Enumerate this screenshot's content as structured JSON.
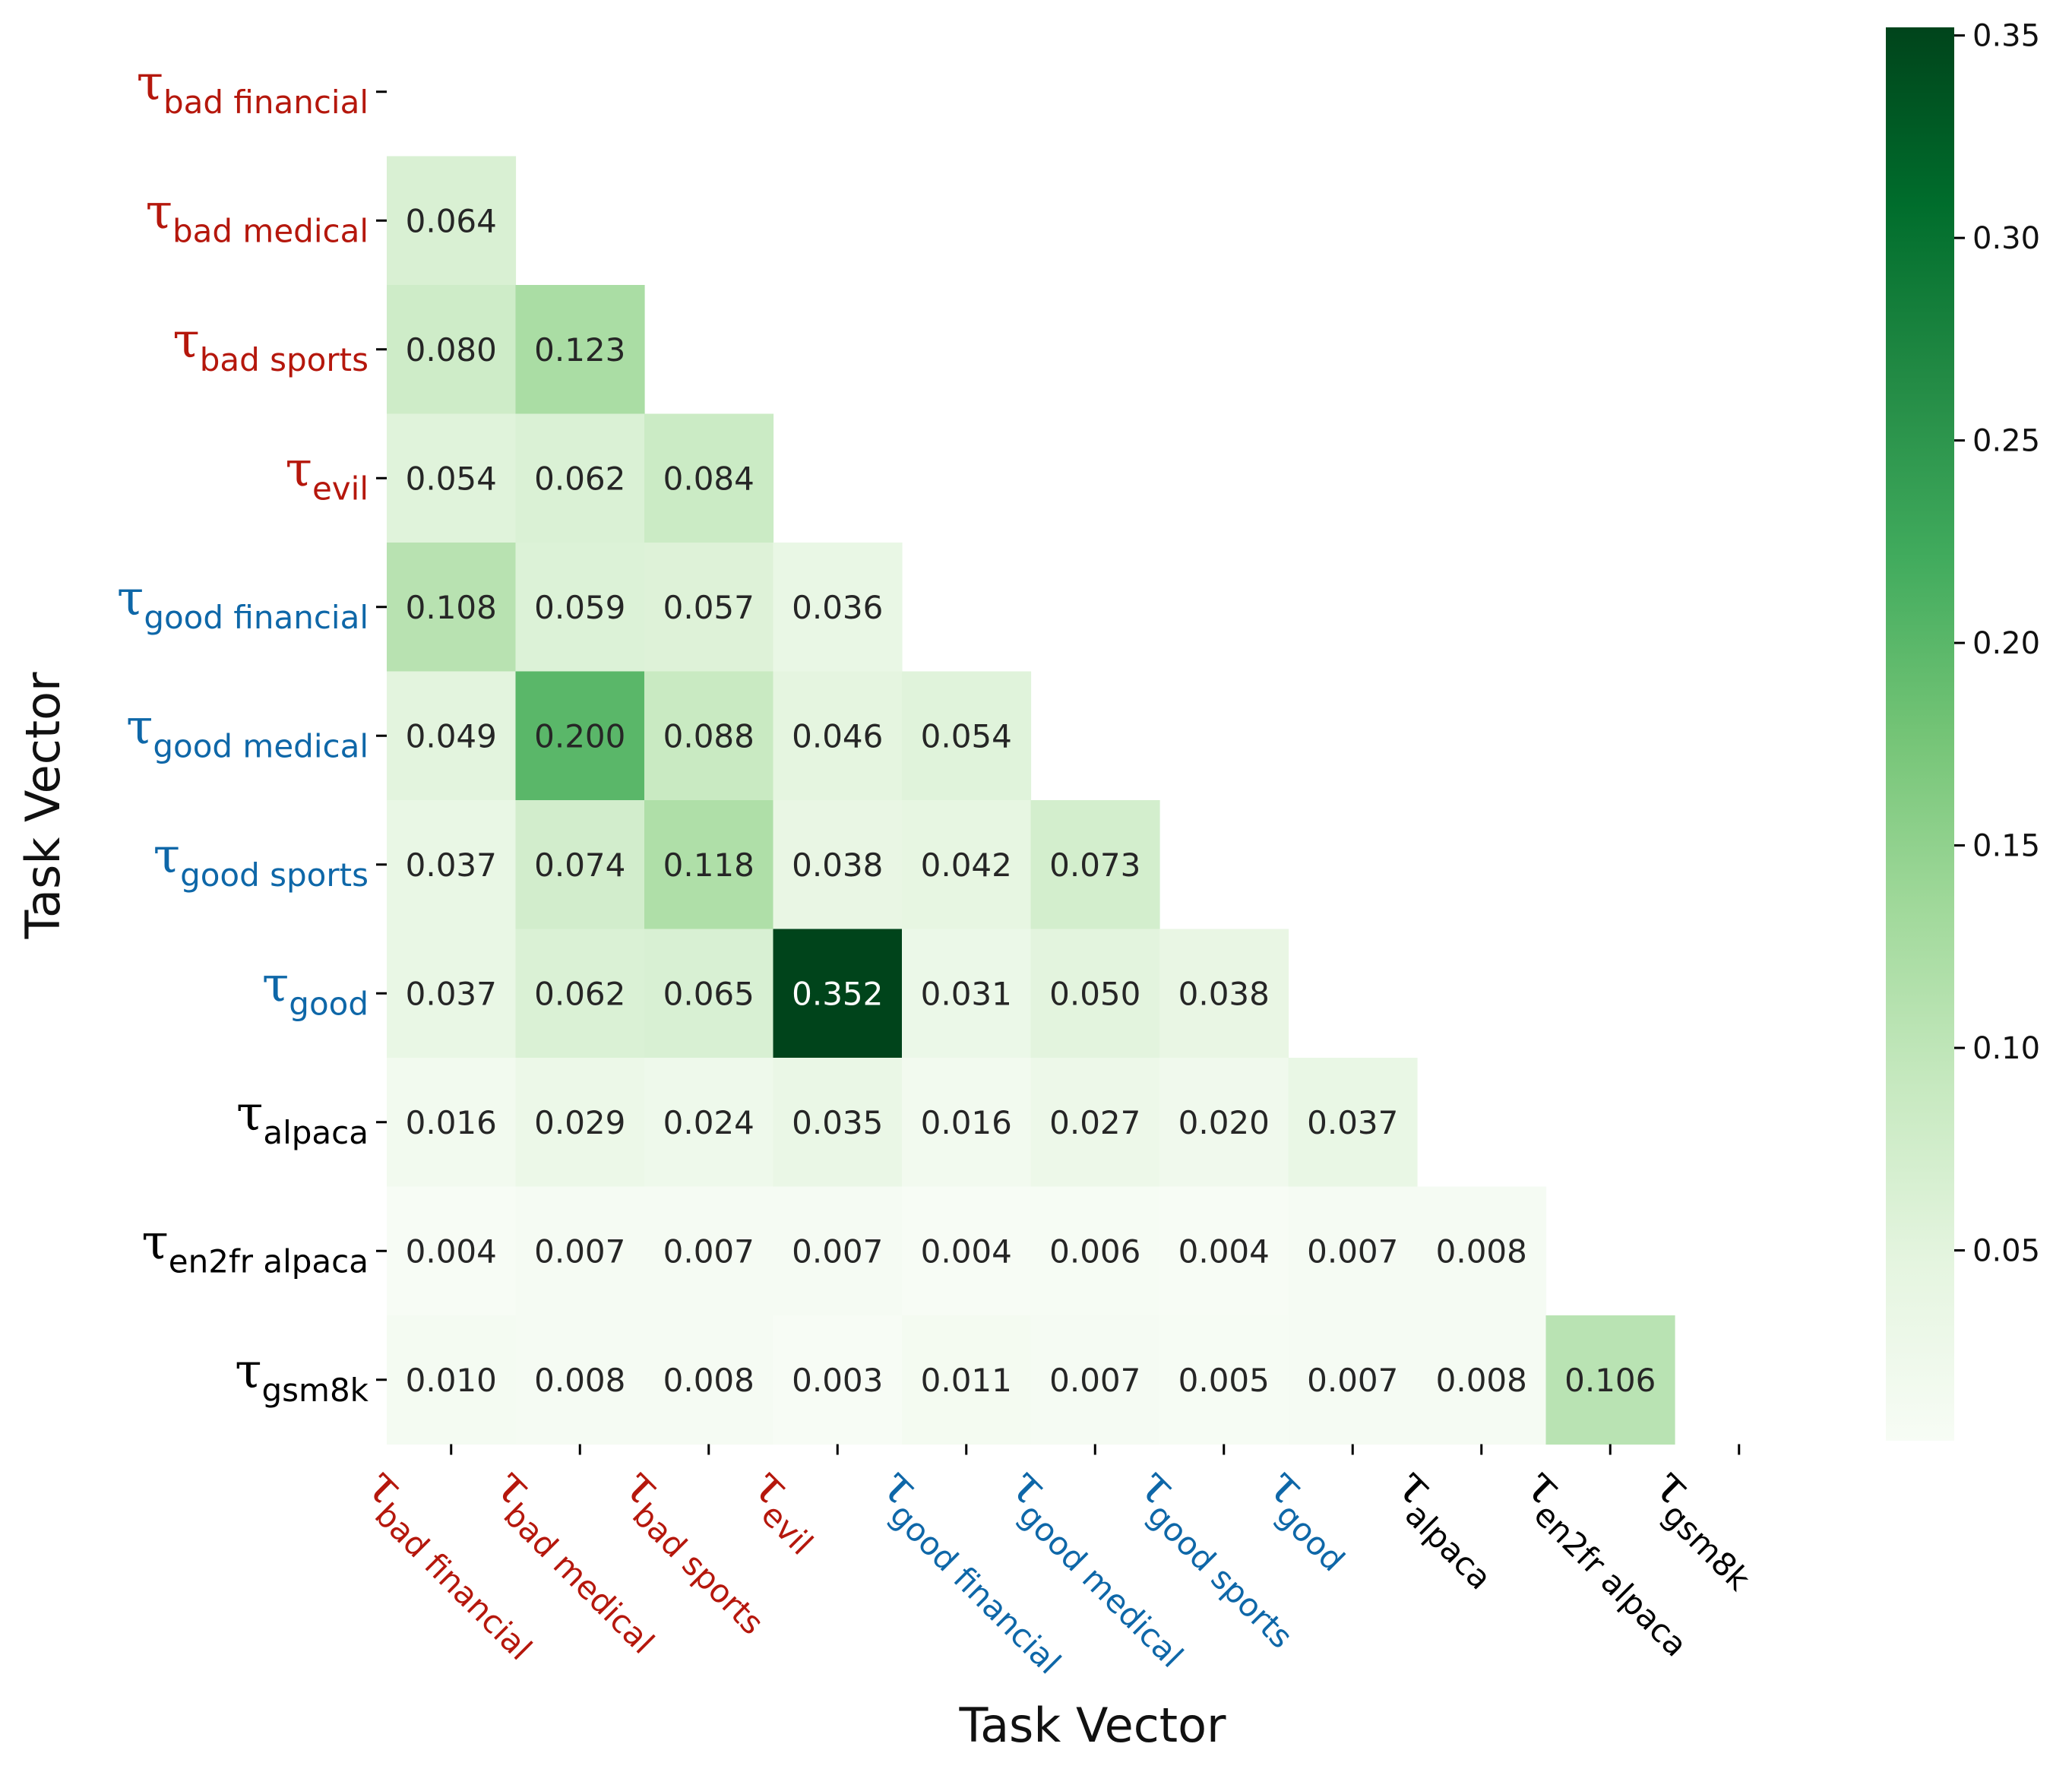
{
  "chart_data": {
    "type": "heatmap",
    "title": "",
    "xlabel": "Task Vector",
    "ylabel": "Task Vector",
    "tau_symbol": "τ",
    "labels": [
      {
        "sub": "bad financial",
        "group": "bad"
      },
      {
        "sub": "bad medical",
        "group": "bad"
      },
      {
        "sub": "bad sports",
        "group": "bad"
      },
      {
        "sub": "evil",
        "group": "bad"
      },
      {
        "sub": "good financial",
        "group": "good"
      },
      {
        "sub": "good medical",
        "group": "good"
      },
      {
        "sub": "good sports",
        "group": "good"
      },
      {
        "sub": "good",
        "group": "good"
      },
      {
        "sub": "alpaca",
        "group": "other"
      },
      {
        "sub": "en2fr alpaca",
        "group": "other"
      },
      {
        "sub": "gsm8k",
        "group": "other"
      }
    ],
    "group_colors": {
      "bad": "#b5170c",
      "good": "#0e67a8",
      "other": "#000000"
    },
    "matrix": [
      [],
      [
        0.064
      ],
      [
        0.08,
        0.123
      ],
      [
        0.054,
        0.062,
        0.084
      ],
      [
        0.108,
        0.059,
        0.057,
        0.036
      ],
      [
        0.049,
        0.2,
        0.088,
        0.046,
        0.054
      ],
      [
        0.037,
        0.074,
        0.118,
        0.038,
        0.042,
        0.073
      ],
      [
        0.037,
        0.062,
        0.065,
        0.352,
        0.031,
        0.05,
        0.038
      ],
      [
        0.016,
        0.029,
        0.024,
        0.035,
        0.016,
        0.027,
        0.02,
        0.037
      ],
      [
        0.004,
        0.007,
        0.007,
        0.007,
        0.004,
        0.006,
        0.004,
        0.007,
        0.008
      ],
      [
        0.01,
        0.008,
        0.008,
        0.003,
        0.011,
        0.007,
        0.005,
        0.007,
        0.008,
        0.106
      ]
    ],
    "value_format_decimals": 3,
    "colorbar": {
      "min": 0.003,
      "max": 0.352,
      "ticks": [
        0.05,
        0.1,
        0.15,
        0.2,
        0.25,
        0.3,
        0.35
      ],
      "tick_labels": [
        "0.05",
        "0.10",
        "0.15",
        "0.20",
        "0.25",
        "0.30",
        "0.35"
      ],
      "colormap": "Greens",
      "colormap_stops": [
        "#f7fcf5",
        "#e5f5e0",
        "#c7e9c0",
        "#a1d99b",
        "#74c476",
        "#41ab5d",
        "#238b45",
        "#006d2c",
        "#00441b"
      ]
    },
    "grid": false,
    "legend": "none"
  }
}
